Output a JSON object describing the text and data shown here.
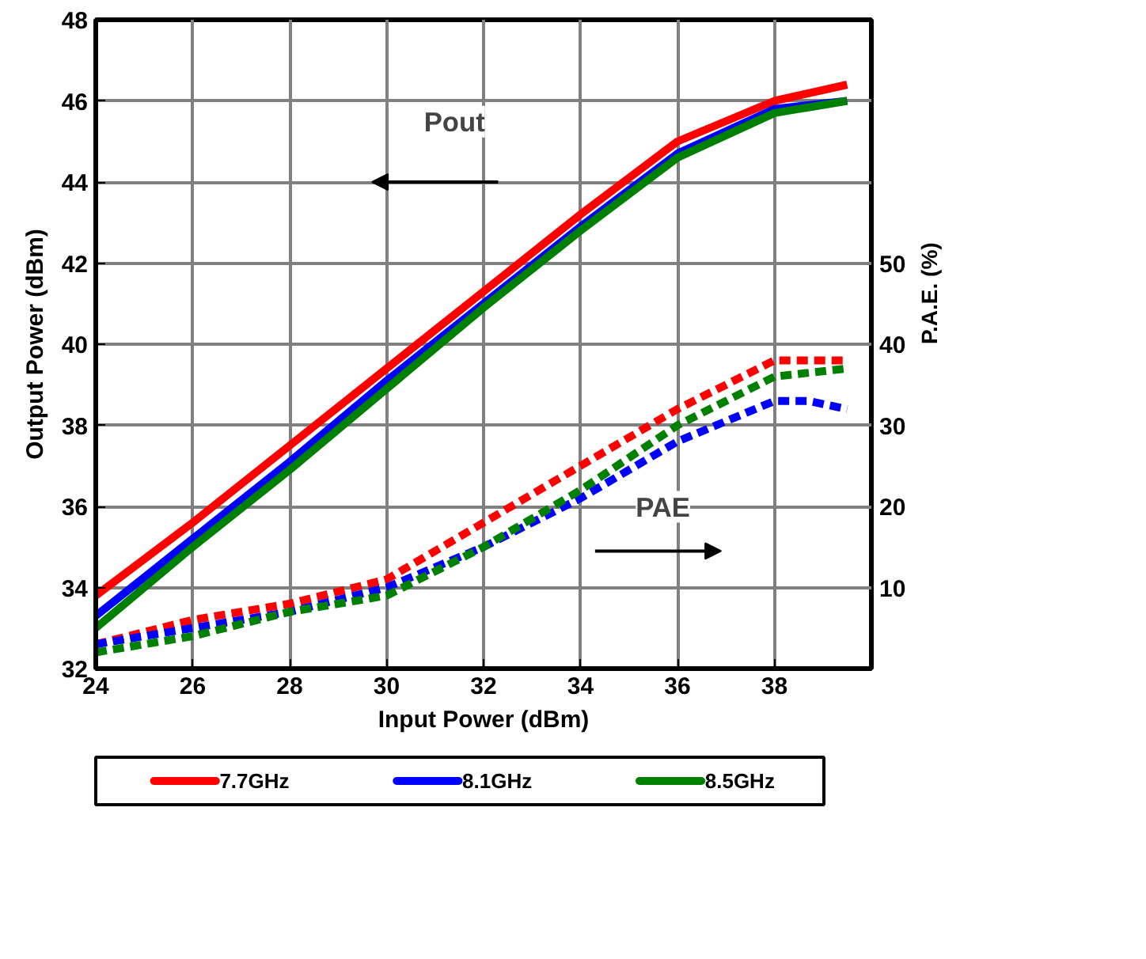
{
  "chart_data": {
    "type": "line",
    "xlabel": "Input Power (dBm)",
    "ylabel": "Output Power (dBm)",
    "y2label": "P.A.E. (%)",
    "annotations": [
      "Pout",
      "PAE"
    ],
    "xlim": [
      24,
      40
    ],
    "xticks": [
      24,
      26,
      28,
      30,
      32,
      34,
      36,
      38
    ],
    "ylim": [
      32,
      48
    ],
    "yticks": [
      32,
      34,
      36,
      38,
      40,
      42,
      44,
      46,
      48
    ],
    "y2lim": [
      0,
      80
    ],
    "y2ticks": [
      10,
      20,
      30,
      40,
      50
    ],
    "grid": true,
    "legend": "bottom",
    "line_style": "solid",
    "series": [
      {
        "name": "7.7GHz",
        "color": "#ff0000",
        "x": [
          24,
          26,
          28,
          30,
          32,
          34,
          36,
          38,
          39.5
        ],
        "values": [
          33.8,
          35.6,
          37.5,
          39.4,
          41.3,
          43.2,
          45.0,
          46.0,
          46.4
        ]
      },
      {
        "name": "8.1GHz",
        "color": "#0000ff",
        "x": [
          24,
          26,
          28,
          30,
          32,
          34,
          36,
          38,
          39.5
        ],
        "values": [
          33.3,
          35.2,
          37.1,
          39.1,
          41.0,
          42.9,
          44.7,
          45.8,
          46.0
        ]
      },
      {
        "name": "8.5GHz",
        "color": "#008000",
        "x": [
          24,
          26,
          28,
          30,
          32,
          34,
          36,
          38,
          39.5
        ],
        "values": [
          33.0,
          35.0,
          36.9,
          38.9,
          40.9,
          42.8,
          44.6,
          45.7,
          46.0
        ]
      },
      {
        "color": "#ff0000",
        "axis": "y2",
        "line_style": "dashed",
        "x": [
          24,
          26,
          28,
          30,
          32,
          34,
          36,
          38,
          39.5
        ],
        "values": [
          3,
          6,
          8,
          11,
          18,
          25,
          32,
          38,
          38
        ]
      },
      {
        "color": "#0000ff",
        "axis": "y2",
        "line_style": "dashed",
        "x": [
          24,
          26,
          28,
          30,
          32,
          34,
          36,
          38,
          38.7,
          39.5
        ],
        "values": [
          3,
          5,
          7,
          10,
          15,
          21,
          28,
          33,
          33,
          32
        ]
      },
      {
        "color": "#008000",
        "axis": "y2",
        "line_style": "dashed",
        "x": [
          24,
          26,
          28,
          30,
          32,
          34,
          36,
          38,
          39.5
        ],
        "values": [
          2,
          4,
          7,
          9,
          15,
          22,
          30,
          36,
          37
        ]
      }
    ]
  }
}
